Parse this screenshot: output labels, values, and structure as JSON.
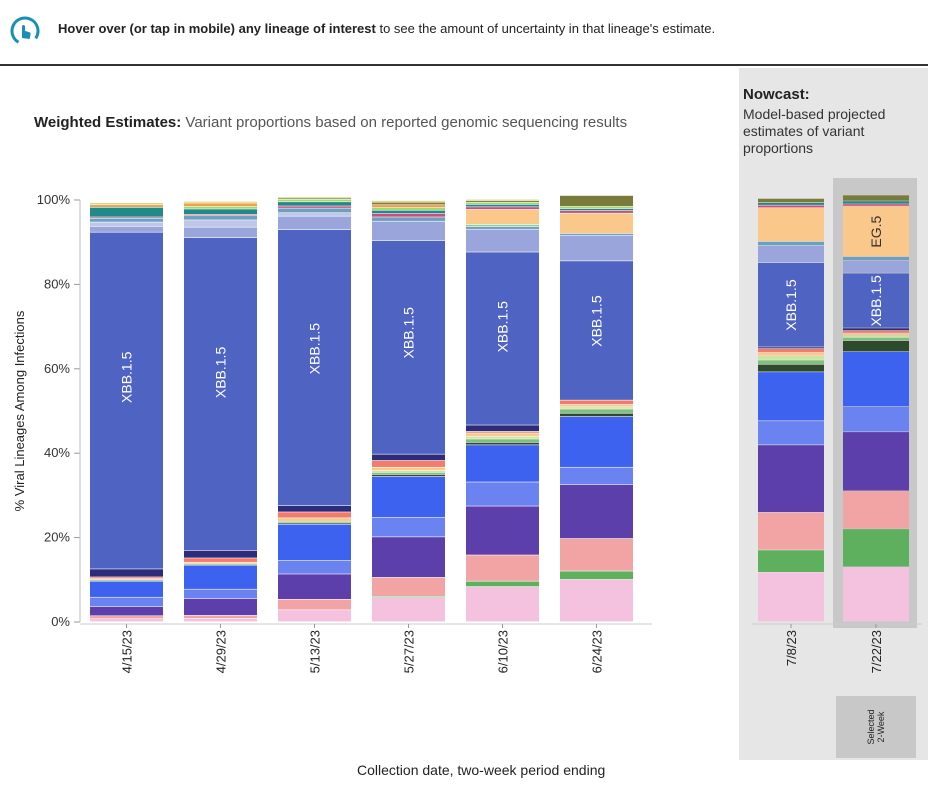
{
  "header": {
    "logo_icon": "hand-pointer-icon",
    "hint_bold": "Hover over (or tap in mobile) any lineage of interest",
    "hint_rest": " to see the amount of uncertainty in that lineage's estimate."
  },
  "weighted": {
    "title_bold": "Weighted Estimates:",
    "title_rest": " Variant proportions based on reported genomic sequencing results"
  },
  "nowcast": {
    "title": "Nowcast:",
    "description": "Model-based projected estimates of variant proportions",
    "selected_label": "Selected\n2-Week"
  },
  "colors": {
    "XBB.1.5": "#4f63c2",
    "EG.5": "#fbc88c",
    "selected_bg": "#c8c8c8",
    "nowcast_bg": "#e6e6e6"
  },
  "chart_data": {
    "type": "bar",
    "stacked": true,
    "ylabel": "% Viral Lineages Among Infections",
    "xlabel": "Collection date, two-week period ending",
    "ylim": [
      0,
      100
    ],
    "yticks": [
      "0%",
      "20%",
      "40%",
      "60%",
      "80%",
      "100%"
    ],
    "categories": [
      "4/15/23",
      "4/29/23",
      "5/13/23",
      "5/27/23",
      "6/10/23",
      "6/24/23",
      "7/8/23",
      "7/22/23"
    ],
    "nowcast_categories": [
      "7/8/23",
      "7/22/23"
    ],
    "selected_category": "7/22/23",
    "segment_labels": [
      {
        "category": "4/15/23",
        "series": "XBB.1.5",
        "text": "XBB.1.5"
      },
      {
        "category": "4/29/23",
        "series": "XBB.1.5",
        "text": "XBB.1.5"
      },
      {
        "category": "5/13/23",
        "series": "XBB.1.5",
        "text": "XBB.1.5"
      },
      {
        "category": "5/27/23",
        "series": "XBB.1.5",
        "text": "XBB.1.5"
      },
      {
        "category": "6/10/23",
        "series": "XBB.1.5",
        "text": "XBB.1.5"
      },
      {
        "category": "6/24/23",
        "series": "XBB.1.5",
        "text": "XBB.1.5"
      },
      {
        "category": "7/8/23",
        "series": "XBB.1.5",
        "text": "XBB.1.5"
      },
      {
        "category": "7/22/23",
        "series": "XBB.1.5",
        "text": "XBB.1.5"
      },
      {
        "category": "7/22/23",
        "series": "EG.5",
        "text": "EG.5"
      }
    ],
    "series": [
      {
        "key": "s01",
        "color": "#f4c2df",
        "values": [
          0.7,
          0.8,
          2.8,
          5.7,
          8.3,
          10.0,
          11.7,
          13.0
        ]
      },
      {
        "key": "s02",
        "color": "#5eaf5e",
        "values": [
          0.0,
          0.0,
          0.0,
          0.3,
          1.3,
          2.0,
          5.3,
          9.0
        ]
      },
      {
        "key": "s03",
        "color": "#f2a3a3",
        "values": [
          0.7,
          0.7,
          2.5,
          4.5,
          6.2,
          7.7,
          8.9,
          9.0
        ]
      },
      {
        "key": "s04",
        "color": "#5c3faa",
        "values": [
          2.2,
          4.0,
          6.0,
          9.6,
          11.6,
          12.8,
          16.0,
          14.0
        ]
      },
      {
        "key": "s05",
        "color": "#6b83f0",
        "values": [
          2.2,
          2.2,
          3.2,
          4.6,
          5.7,
          4.1,
          5.7,
          6.0
        ]
      },
      {
        "key": "s06",
        "color": "#3d62f0",
        "values": [
          3.8,
          5.7,
          8.6,
          9.7,
          8.8,
          12.0,
          11.6,
          13.0
        ]
      },
      {
        "key": "s07",
        "color": "#2d4a2d",
        "values": [
          0.0,
          0.0,
          0.3,
          0.5,
          0.6,
          0.8,
          1.8,
          2.6
        ]
      },
      {
        "key": "s08",
        "color": "#7fbf7f",
        "values": [
          0.3,
          0.3,
          0.4,
          0.5,
          0.8,
          1.0,
          1.0,
          0.7
        ]
      },
      {
        "key": "s09",
        "color": "#c8e6a0",
        "values": [
          0.0,
          0.0,
          0.0,
          0.4,
          0.6,
          0.5,
          1.0,
          0.6
        ]
      },
      {
        "key": "s10",
        "color": "#fbc88c",
        "values": [
          0.3,
          0.4,
          0.8,
          0.8,
          0.8,
          0.6,
          0.8,
          0.5
        ]
      },
      {
        "key": "s11",
        "color": "#f47b6b",
        "values": [
          0.4,
          1.0,
          1.4,
          1.6,
          0.4,
          1.0,
          0.9,
          0.6
        ]
      },
      {
        "key": "s12",
        "color": "#2c2c7c",
        "values": [
          1.9,
          1.8,
          1.5,
          1.5,
          1.5,
          0.0,
          0.4,
          0.6
        ]
      },
      {
        "key": "XBB.1.5",
        "color": "#4f63c2",
        "values": [
          79.8,
          74.1,
          65.4,
          50.6,
          41.0,
          33.0,
          20.0,
          13.0
        ]
      },
      {
        "key": "s14",
        "color": "#9aa6db",
        "values": [
          1.4,
          2.5,
          3.2,
          4.6,
          5.4,
          6.0,
          4.0,
          3.0
        ]
      },
      {
        "key": "s15",
        "color": "#c0c6e8",
        "values": [
          1.0,
          1.7,
          0.8,
          0.0,
          0.0,
          0.0,
          0.0,
          0.0
        ]
      },
      {
        "key": "s16",
        "color": "#6ba0c0",
        "values": [
          0.9,
          1.0,
          1.1,
          1.0,
          0.6,
          0.5,
          1.0,
          0.9
        ]
      },
      {
        "key": "s17",
        "color": "#80d0a0",
        "values": [
          0.0,
          0.0,
          0.0,
          0.0,
          0.5,
          0.0,
          0.0,
          0.0
        ]
      },
      {
        "key": "EG.5",
        "color": "#fbc88c",
        "values": [
          0.0,
          0.0,
          0.0,
          0.0,
          3.6,
          4.8,
          8.0,
          12.0
        ]
      },
      {
        "key": "s19",
        "color": "#d44a7a",
        "values": [
          0.3,
          0.3,
          0.5,
          0.8,
          0.6,
          0.6,
          0.6,
          0.5
        ]
      },
      {
        "key": "s20",
        "color": "#208a8a",
        "values": [
          2.3,
          1.3,
          1.0,
          0.8,
          0.6,
          0.5,
          0.6,
          0.7
        ]
      },
      {
        "key": "s21",
        "color": "#a2d86a",
        "values": [
          0.0,
          0.6,
          0.6,
          0.6,
          0.5,
          0.5,
          0.0,
          0.0
        ]
      },
      {
        "key": "s22",
        "color": "#f0a04a",
        "values": [
          0.6,
          0.8,
          0.0,
          0.7,
          0.0,
          0.0,
          0.0,
          0.0
        ]
      },
      {
        "key": "s23",
        "color": "#7a7a3a",
        "values": [
          0.0,
          0.0,
          0.3,
          0.6,
          0.4,
          2.6,
          1.0,
          1.4
        ]
      },
      {
        "key": "s24",
        "color": "#d8d880",
        "values": [
          0.5,
          0.4,
          0.3,
          0.4,
          0.3,
          0.0,
          0.0,
          0.0
        ]
      }
    ]
  }
}
